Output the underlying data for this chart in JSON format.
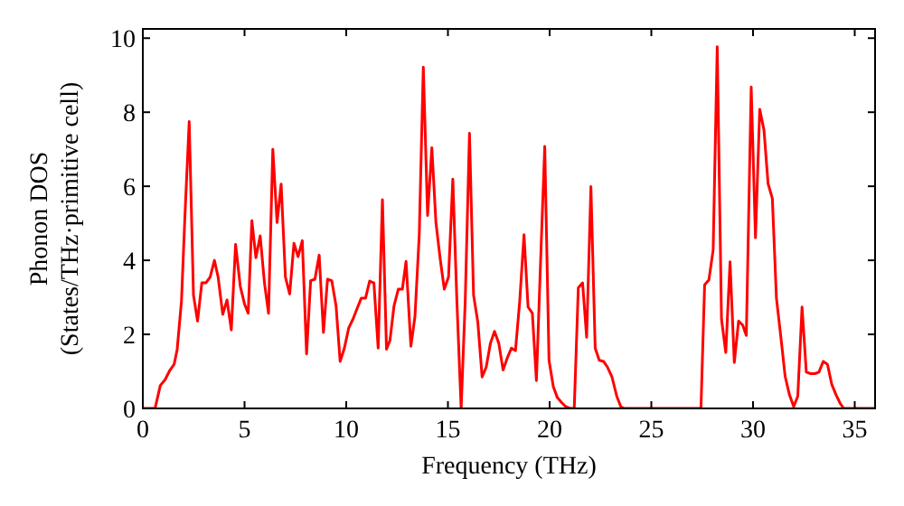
{
  "chart_data": {
    "type": "line",
    "xlabel": "Frequency (THz)",
    "ylabel": "Phonon DOS\n(States/THz·primitive cell)",
    "xlim": [
      0,
      36
    ],
    "ylim": [
      0,
      10.25
    ],
    "xticks": [
      0,
      5,
      10,
      15,
      20,
      25,
      30,
      35
    ],
    "yticks": [
      0,
      2,
      4,
      6,
      8,
      10
    ],
    "series": [
      {
        "color": "#ff0000",
        "x": [
          0,
          0.6,
          0.86,
          1.1,
          1.33,
          1.54,
          1.69,
          1.9,
          2.07,
          2.28,
          2.49,
          2.69,
          2.9,
          3.1,
          3.31,
          3.52,
          3.7,
          3.93,
          4.14,
          4.35,
          4.56,
          4.79,
          5.0,
          5.18,
          5.36,
          5.56,
          5.77,
          5.98,
          6.18,
          6.39,
          6.6,
          6.8,
          7.01,
          7.22,
          7.43,
          7.63,
          7.84,
          8.05,
          8.25,
          8.46,
          8.67,
          8.88,
          9.08,
          9.29,
          9.5,
          9.7,
          9.91,
          10.12,
          10.33,
          10.53,
          10.74,
          10.95,
          11.15,
          11.36,
          11.57,
          11.78,
          11.98,
          12.15,
          12.35,
          12.56,
          12.76,
          12.94,
          13.18,
          13.38,
          13.59,
          13.79,
          14.0,
          14.21,
          14.41,
          14.62,
          14.82,
          15.03,
          15.24,
          15.44,
          15.65,
          15.85,
          16.06,
          16.26,
          16.47,
          16.68,
          16.88,
          17.09,
          17.29,
          17.5,
          17.71,
          17.91,
          18.12,
          18.32,
          18.53,
          18.74,
          18.94,
          19.15,
          19.35,
          19.56,
          19.76,
          19.97,
          20.18,
          20.38,
          20.59,
          20.79,
          21.0,
          21.21,
          21.41,
          21.62,
          21.82,
          22.03,
          22.24,
          22.44,
          22.65,
          22.85,
          23.06,
          23.3,
          23.5,
          23.66,
          27.44,
          27.62,
          27.83,
          28.04,
          28.24,
          28.45,
          28.66,
          28.87,
          29.08,
          29.29,
          29.49,
          29.67,
          29.91,
          30.12,
          30.33,
          30.54,
          30.74,
          30.95,
          31.15,
          31.37,
          31.58,
          31.79,
          32.0,
          32.2,
          32.41,
          32.62,
          32.83,
          33.04,
          33.24,
          33.45,
          33.66,
          33.87,
          34.08,
          34.29,
          34.46,
          36.0
        ],
        "values": [
          0,
          0,
          0.62,
          0.78,
          1.03,
          1.19,
          1.6,
          2.9,
          5.2,
          7.75,
          3.06,
          2.36,
          3.39,
          3.39,
          3.55,
          4.0,
          3.55,
          2.54,
          2.93,
          2.12,
          4.43,
          3.3,
          2.82,
          2.57,
          5.07,
          4.07,
          4.66,
          3.39,
          2.57,
          7.0,
          5.02,
          6.06,
          3.55,
          3.09,
          4.46,
          4.1,
          4.53,
          1.47,
          3.45,
          3.49,
          4.14,
          2.05,
          3.49,
          3.45,
          2.77,
          1.27,
          1.63,
          2.17,
          2.41,
          2.69,
          2.98,
          2.98,
          3.44,
          3.39,
          1.63,
          5.64,
          1.6,
          1.84,
          2.77,
          3.22,
          3.22,
          3.97,
          1.68,
          2.49,
          4.69,
          9.22,
          5.21,
          7.04,
          5.02,
          4.04,
          3.22,
          3.55,
          6.19,
          2.9,
          0,
          2.9,
          7.43,
          3.06,
          2.33,
          0.85,
          1.11,
          1.76,
          2.08,
          1.76,
          1.04,
          1.35,
          1.63,
          1.56,
          2.9,
          4.69,
          2.74,
          2.57,
          0.75,
          4.04,
          7.08,
          1.3,
          0.59,
          0.29,
          0.16,
          0.05,
          0,
          0,
          3.26,
          3.39,
          1.92,
          5.99,
          1.63,
          1.3,
          1.27,
          1.11,
          0.86,
          0.33,
          0.05,
          0,
          0,
          3.34,
          3.47,
          4.28,
          9.77,
          2.41,
          1.51,
          3.96,
          1.24,
          2.36,
          2.25,
          1.97,
          8.68,
          4.61,
          8.08,
          7.51,
          6.07,
          5.67,
          2.98,
          1.92,
          0.86,
          0.37,
          0.05,
          0.33,
          2.74,
          0.98,
          0.94,
          0.94,
          0.98,
          1.27,
          1.19,
          0.65,
          0.37,
          0.13,
          0,
          0
        ]
      }
    ]
  }
}
